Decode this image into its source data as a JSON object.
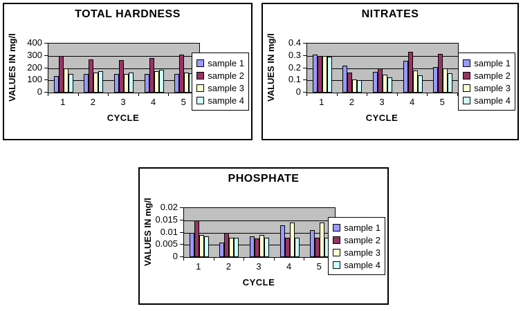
{
  "page": {
    "background": "#ffffff"
  },
  "colors": {
    "chart_border": "#000000",
    "plot_background": "#c0c0c0",
    "gridline": "#000000",
    "axis": "#000000",
    "series": [
      "#9999ff",
      "#993366",
      "#ffffcc",
      "#ccffff"
    ]
  },
  "legend_labels": [
    "sample 1",
    "sample 2",
    "sample 3",
    "sample 4"
  ],
  "chart_data": [
    {
      "type": "bar",
      "title": "TOTAL HARDNESS",
      "xlabel": "CYCLE",
      "ylabel": "VALUES IN mg/l",
      "categories": [
        "1",
        "2",
        "3",
        "4",
        "5"
      ],
      "ylim": [
        0,
        400
      ],
      "yticks": [
        "0",
        "100",
        "200",
        "300",
        "400"
      ],
      "grid": true,
      "legend_position": "right",
      "plot_background": "#c0c0c0",
      "series": [
        {
          "name": "sample 1",
          "color": "#9999ff",
          "values": [
            135,
            155,
            150,
            155,
            155
          ]
        },
        {
          "name": "sample 2",
          "color": "#993366",
          "values": [
            300,
            270,
            265,
            280,
            310
          ]
        },
        {
          "name": "sample 3",
          "color": "#ffffcc",
          "values": [
            200,
            165,
            155,
            175,
            165
          ]
        },
        {
          "name": "sample 4",
          "color": "#ccffff",
          "values": [
            155,
            175,
            165,
            185,
            160
          ]
        }
      ]
    },
    {
      "type": "bar",
      "title": "NITRATES",
      "xlabel": "CYCLE",
      "ylabel": "VALUES IN mg/l",
      "categories": [
        "1",
        "2",
        "3",
        "4",
        "5"
      ],
      "ylim": [
        0,
        0.4
      ],
      "yticks": [
        "0",
        "0.1",
        "0.2",
        "0.3",
        "0.4"
      ],
      "grid": true,
      "legend_position": "right",
      "plot_background": "#c0c0c0",
      "series": [
        {
          "name": "sample 1",
          "color": "#9999ff",
          "values": [
            0.31,
            0.22,
            0.17,
            0.26,
            0.21
          ]
        },
        {
          "name": "sample 2",
          "color": "#993366",
          "values": [
            0.3,
            0.165,
            0.195,
            0.33,
            0.315
          ]
        },
        {
          "name": "sample 3",
          "color": "#ffffcc",
          "values": [
            0.3,
            0.105,
            0.145,
            0.18,
            0.195
          ]
        },
        {
          "name": "sample 4",
          "color": "#ccffff",
          "values": [
            0.295,
            0.1,
            0.125,
            0.14,
            0.16
          ]
        }
      ]
    },
    {
      "type": "bar",
      "title": "PHOSPHATE",
      "xlabel": "CYCLE",
      "ylabel": "VALUES IN mg/l",
      "categories": [
        "1",
        "2",
        "3",
        "4",
        "5"
      ],
      "ylim": [
        0,
        0.02
      ],
      "yticks": [
        "0",
        "0.005",
        "0.01",
        "0.015",
        "0.02"
      ],
      "grid": true,
      "legend_position": "right",
      "plot_background": "#c0c0c0",
      "series": [
        {
          "name": "sample 1",
          "color": "#9999ff",
          "values": [
            0.01,
            0.006,
            0.0085,
            0.013,
            0.011
          ]
        },
        {
          "name": "sample 2",
          "color": "#993366",
          "values": [
            0.015,
            0.01,
            0.0075,
            0.008,
            0.008
          ]
        },
        {
          "name": "sample 3",
          "color": "#ffffcc",
          "values": [
            0.009,
            0.008,
            0.009,
            0.014,
            0.014
          ]
        },
        {
          "name": "sample 4",
          "color": "#ccffff",
          "values": [
            0.0085,
            0.008,
            0.008,
            0.008,
            0.008
          ]
        }
      ]
    }
  ]
}
